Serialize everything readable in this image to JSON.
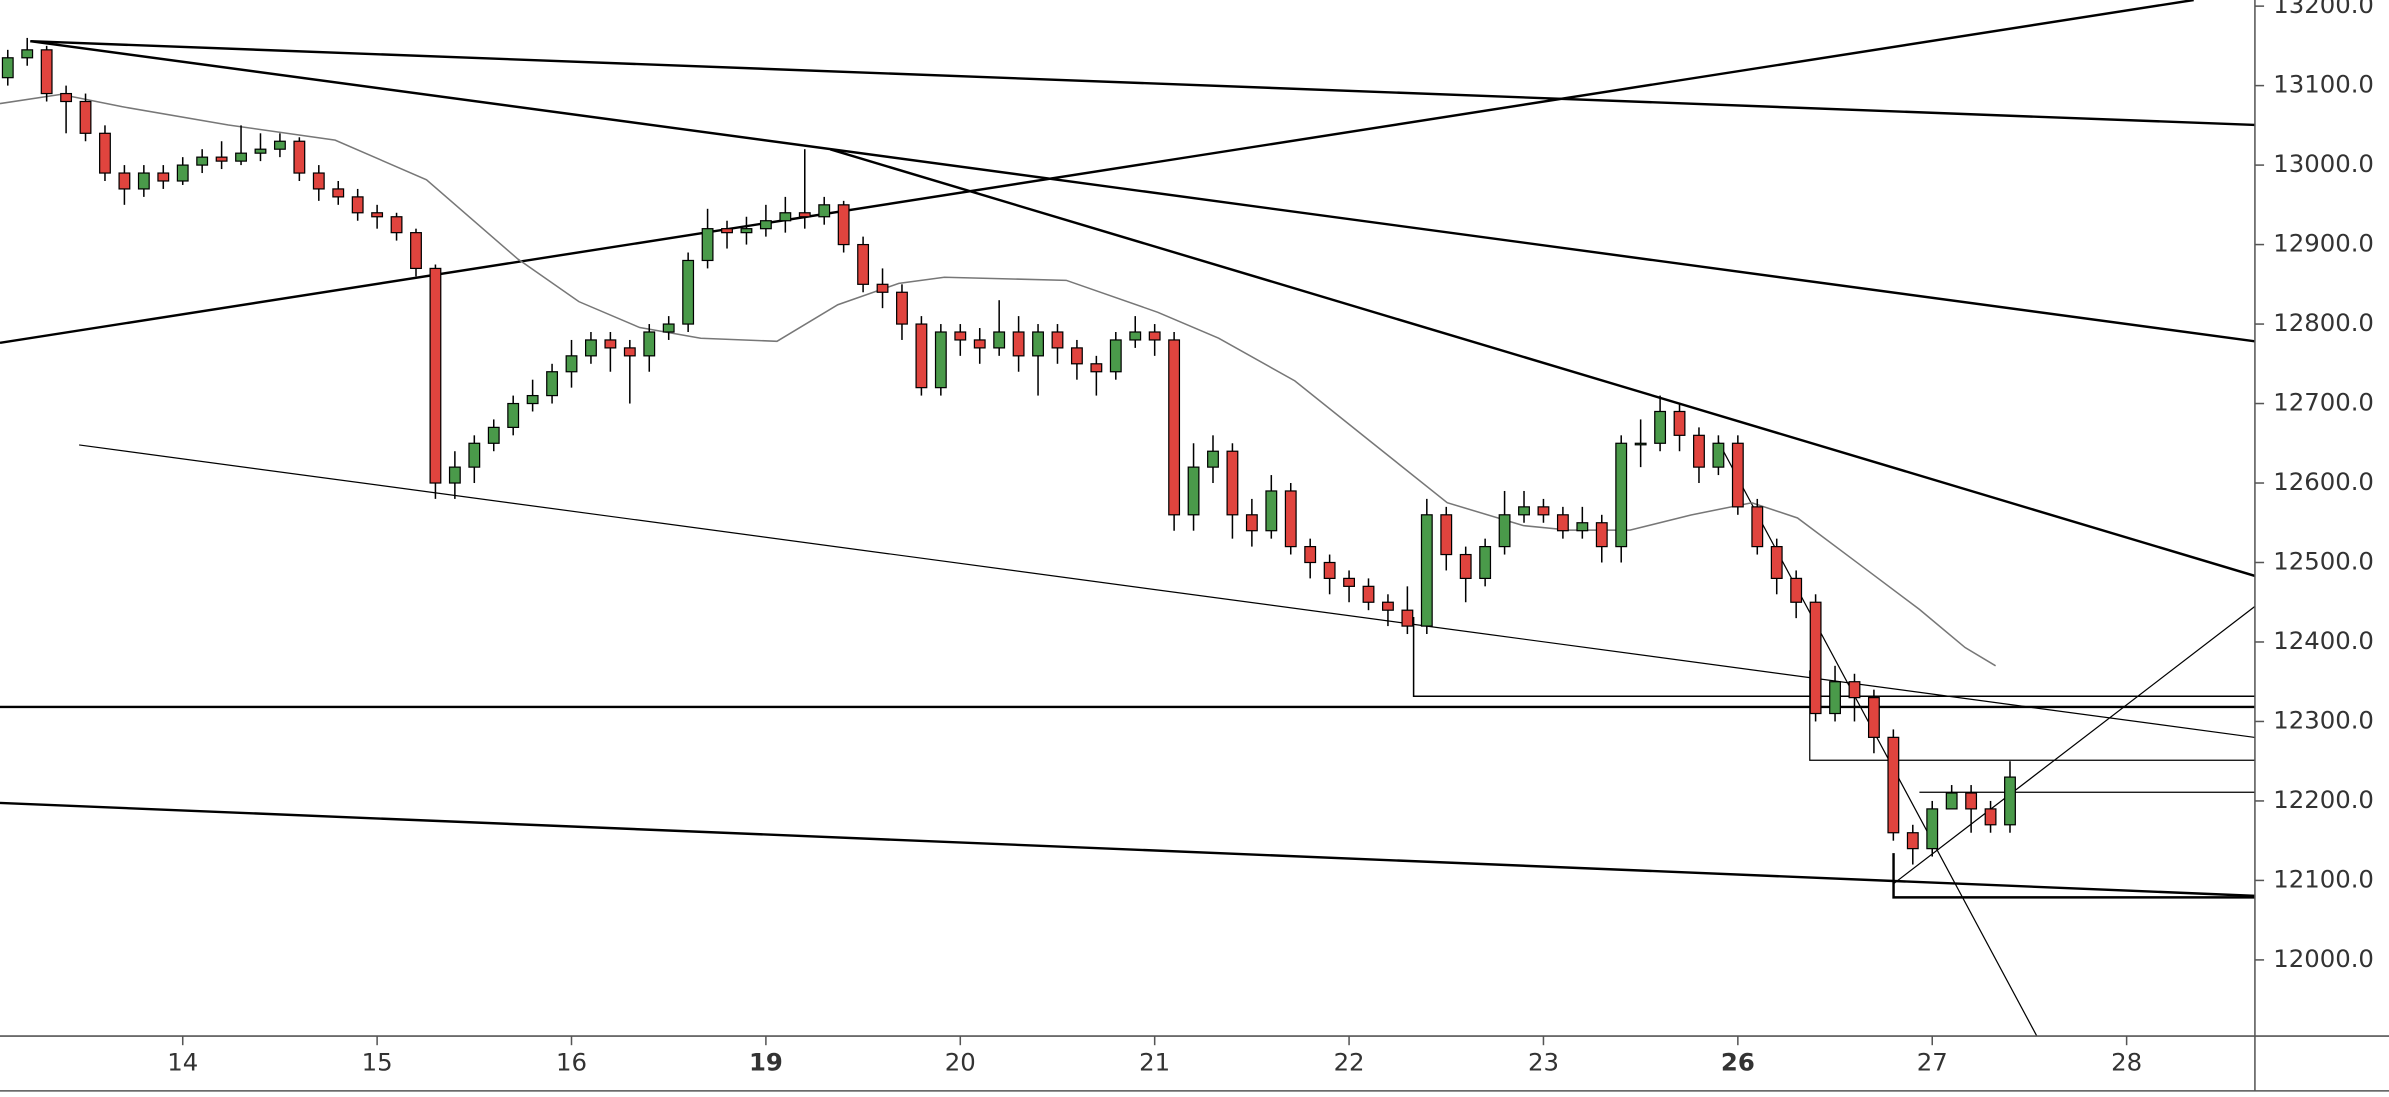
{
  "chart_data": {
    "type": "candlestick",
    "xlim": [
      0.06,
      11.66
    ],
    "ylim": [
      11904.2,
      13207.7
    ],
    "xticks": [
      {
        "value": 1,
        "label": "14"
      },
      {
        "value": 2,
        "label": "15"
      },
      {
        "value": 3,
        "label": "16"
      },
      {
        "value": 4,
        "label": "19",
        "bold": true
      },
      {
        "value": 5,
        "label": "20"
      },
      {
        "value": 6,
        "label": "21"
      },
      {
        "value": 7,
        "label": "22"
      },
      {
        "value": 8,
        "label": "23"
      },
      {
        "value": 9,
        "label": "26",
        "bold": true
      },
      {
        "value": 10,
        "label": "27"
      },
      {
        "value": 11,
        "label": "28"
      }
    ],
    "yticks": [
      {
        "value": 12000,
        "label": "12000.0"
      },
      {
        "value": 12100,
        "label": "12100.0"
      },
      {
        "value": 12200,
        "label": "12200.0"
      },
      {
        "value": 12300,
        "label": "12300.0"
      },
      {
        "value": 12400,
        "label": "12400.0"
      },
      {
        "value": 12500,
        "label": "12500.0"
      },
      {
        "value": 12600,
        "label": "12600.0"
      },
      {
        "value": 12700,
        "label": "12700.0"
      },
      {
        "value": 12800,
        "label": "12800.0"
      },
      {
        "value": 12900,
        "label": "12900.0"
      },
      {
        "value": 13000,
        "label": "13000.0"
      },
      {
        "value": 13100,
        "label": "13100.0"
      },
      {
        "value": 13200,
        "label": "13200.0"
      }
    ],
    "up_color": "#4a9a4a",
    "down_color": "#e0443e",
    "candles": {
      "x": [
        0.1,
        0.2,
        0.3,
        0.4,
        0.5,
        0.6,
        0.7,
        0.8,
        0.9,
        1.0,
        1.1,
        1.2,
        1.3,
        1.4,
        1.5,
        1.6,
        1.7,
        1.8,
        1.9,
        2.0,
        2.1,
        2.2,
        2.3,
        2.4,
        2.5,
        2.6,
        2.7,
        2.8,
        2.9,
        3.0,
        3.1,
        3.2,
        3.3,
        3.4,
        3.5,
        3.6,
        3.7,
        3.8,
        3.9,
        4.0,
        4.1,
        4.2,
        4.3,
        4.4,
        4.5,
        4.6,
        4.7,
        4.8,
        4.9,
        5.0,
        5.1,
        5.2,
        5.3,
        5.4,
        5.5,
        5.6,
        5.7,
        5.8,
        5.9,
        6.0,
        6.1,
        6.2,
        6.3,
        6.4,
        6.5,
        6.6,
        6.7,
        6.8,
        6.9,
        7.0,
        7.1,
        7.2,
        7.3,
        7.4,
        7.5,
        7.6,
        7.7,
        7.8,
        7.9,
        8.0,
        8.1,
        8.2,
        8.3,
        8.4,
        8.5,
        8.6,
        8.7,
        8.8,
        8.9,
        9.0,
        9.1,
        9.2,
        9.3,
        9.4,
        9.5,
        9.6,
        9.7,
        9.8,
        9.9,
        10.0,
        10.1,
        10.2,
        10.3,
        10.4
      ],
      "open": [
        13110,
        13135,
        13145,
        13090,
        13080,
        13040,
        12990,
        12970,
        12990,
        12980,
        13000,
        13010,
        13005,
        13015,
        13020,
        13030,
        12990,
        12970,
        12960,
        12940,
        12935,
        12915,
        12870,
        12600,
        12620,
        12650,
        12670,
        12700,
        12710,
        12740,
        12760,
        12780,
        12770,
        12760,
        12790,
        12800,
        12880,
        12920,
        12915,
        12920,
        12930,
        12940,
        12935,
        12950,
        12900,
        12850,
        12840,
        12800,
        12720,
        12790,
        12780,
        12770,
        12790,
        12760,
        12790,
        12770,
        12750,
        12740,
        12780,
        12790,
        12780,
        12560,
        12620,
        12640,
        12560,
        12540,
        12590,
        12520,
        12500,
        12480,
        12470,
        12450,
        12440,
        12420,
        12560,
        12510,
        12480,
        12520,
        12560,
        12570,
        12560,
        12540,
        12550,
        12520,
        12650,
        12650,
        12690,
        12660,
        12620,
        12650,
        12570,
        12520,
        12480,
        12450,
        12310,
        12350,
        12330,
        12280,
        12160,
        12140,
        12190,
        12210,
        12190,
        12170
      ],
      "high": [
        13145,
        13160,
        13150,
        13100,
        13090,
        13050,
        13000,
        13000,
        13000,
        13010,
        13020,
        13030,
        13050,
        13040,
        13040,
        13035,
        13000,
        12980,
        12970,
        12950,
        12940,
        12920,
        12875,
        12640,
        12660,
        12680,
        12710,
        12730,
        12750,
        12780,
        12790,
        12790,
        12780,
        12800,
        12810,
        12890,
        12945,
        12930,
        12935,
        12950,
        12960,
        13020,
        12960,
        12955,
        12910,
        12870,
        12850,
        12810,
        12800,
        12800,
        12795,
        12830,
        12810,
        12800,
        12800,
        12780,
        12760,
        12790,
        12810,
        12800,
        12790,
        12650,
        12660,
        12650,
        12580,
        12610,
        12600,
        12530,
        12510,
        12490,
        12480,
        12460,
        12470,
        12580,
        12570,
        12520,
        12530,
        12590,
        12590,
        12580,
        12570,
        12570,
        12560,
        12660,
        12680,
        12710,
        12700,
        12670,
        12660,
        12660,
        12580,
        12530,
        12490,
        12460,
        12370,
        12360,
        12340,
        12290,
        12170,
        12200,
        12220,
        12220,
        12200,
        12250
      ],
      "low": [
        13100,
        13125,
        13080,
        13040,
        13030,
        12980,
        12950,
        12960,
        12970,
        12975,
        12990,
        12995,
        13000,
        13005,
        13010,
        12980,
        12955,
        12950,
        12930,
        12920,
        12905,
        12860,
        12580,
        12580,
        12600,
        12640,
        12660,
        12690,
        12700,
        12720,
        12750,
        12740,
        12700,
        12740,
        12780,
        12790,
        12870,
        12895,
        12900,
        12910,
        12915,
        12920,
        12925,
        12890,
        12840,
        12820,
        12780,
        12710,
        12710,
        12760,
        12750,
        12760,
        12740,
        12710,
        12750,
        12730,
        12710,
        12730,
        12770,
        12760,
        12540,
        12540,
        12600,
        12530,
        12520,
        12530,
        12510,
        12480,
        12460,
        12450,
        12440,
        12420,
        12410,
        12410,
        12490,
        12450,
        12470,
        12510,
        12550,
        12550,
        12530,
        12530,
        12500,
        12500,
        12620,
        12640,
        12640,
        12600,
        12610,
        12560,
        12510,
        12460,
        12430,
        12300,
        12300,
        12300,
        12260,
        12150,
        12120,
        12130,
        12190,
        12160,
        12160,
        12160
      ],
      "close": [
        13135,
        13145,
        13090,
        13080,
        13040,
        12990,
        12970,
        12990,
        12980,
        13000,
        13010,
        13005,
        13015,
        13020,
        13030,
        12990,
        12970,
        12960,
        12940,
        12935,
        12915,
        12870,
        12600,
        12620,
        12650,
        12670,
        12700,
        12710,
        12740,
        12760,
        12780,
        12770,
        12760,
        12790,
        12800,
        12880,
        12920,
        12915,
        12920,
        12930,
        12940,
        12935,
        12950,
        12900,
        12850,
        12840,
        12800,
        12720,
        12790,
        12780,
        12770,
        12790,
        12760,
        12790,
        12770,
        12750,
        12740,
        12780,
        12790,
        12780,
        12560,
        12620,
        12640,
        12560,
        12540,
        12590,
        12520,
        12500,
        12480,
        12470,
        12450,
        12440,
        12420,
        12560,
        12510,
        12480,
        12520,
        12560,
        12570,
        12560,
        12540,
        12550,
        12520,
        12650,
        12650,
        12690,
        12660,
        12620,
        12650,
        12570,
        12520,
        12480,
        12450,
        12310,
        12350,
        12330,
        12280,
        12160,
        12140,
        12190,
        12210,
        12190,
        12170,
        12230
      ]
    },
    "moving_average": {
      "color": "#777777",
      "x": [
        0.06,
        0.373,
        0.687,
        1.235,
        1.784,
        2.254,
        2.724,
        3.038,
        3.351,
        3.665,
        4.057,
        4.37,
        4.684,
        4.918,
        5.545,
        6.016,
        6.329,
        6.721,
        7.113,
        7.505,
        7.897,
        8.132,
        8.445,
        8.759,
        9.072,
        9.307,
        9.621,
        9.934,
        10.169,
        10.326
      ],
      "y": [
        13077.4,
        13088.9,
        13073.5,
        13050.5,
        13031.4,
        12981.5,
        12881.8,
        12828.2,
        12795.6,
        12782.2,
        12778.3,
        12824.3,
        12851.2,
        12858.9,
        12855.0,
        12814.8,
        12782.2,
        12728.5,
        12651.8,
        12575.2,
        12546.4,
        12540.7,
        12540.7,
        12559.8,
        12575.2,
        12556.0,
        12498.5,
        12441.0,
        12393.0,
        12370.0
      ]
    },
    "lines": [
      {
        "x": [
          0.216,
          11.66
        ],
        "y": [
          13155.9,
          13050.5
        ],
        "width": 1.6
      },
      {
        "x": [
          0.216,
          11.66
        ],
        "y": [
          13155.9,
          12778.3
        ],
        "width": 1.6
      },
      {
        "x": [
          0.06,
          11.345
        ],
        "y": [
          12776.4,
          13207.7
        ],
        "width": 1.6
      },
      {
        "x": [
          4.331,
          11.66
        ],
        "y": [
          13019.8,
          12483.1
        ],
        "width": 1.6
      },
      {
        "x": [
          0.467,
          11.66
        ],
        "y": [
          12647.9,
          12279.9
        ],
        "width": 0.8
      },
      {
        "x": [
          0.06,
          11.66
        ],
        "y": [
          12318.3,
          12318.3
        ],
        "width": 1.6
      },
      {
        "x": [
          0.06,
          11.66
        ],
        "y": [
          12197.5,
          12080.6
        ],
        "width": 1.6
      },
      {
        "x": [
          9.801,
          11.66
        ],
        "y": [
          12095.9,
          12444.8
        ],
        "width": 0.8
      },
      {
        "x": [
          8.9,
          10.538
        ],
        "y": [
          12651.8,
          11904.2
        ],
        "width": 0.8
      },
      {
        "x": [
          7.332,
          7.332,
          11.66
        ],
        "y": [
          12431.4,
          12331.7,
          12331.7
        ],
        "width": 1
      },
      {
        "x": [
          9.37,
          9.37,
          11.66
        ],
        "y": [
          12364.3,
          12251.2,
          12251.2
        ],
        "width": 0.8
      },
      {
        "x": [
          9.934,
          11.66
        ],
        "y": [
          12210.9,
          12210.9
        ],
        "width": 0.8
      },
      {
        "x": [
          9.801,
          9.801,
          11.66
        ],
        "y": [
          12134.3,
          12078.7,
          12078.7
        ],
        "width": 1.6
      }
    ]
  }
}
